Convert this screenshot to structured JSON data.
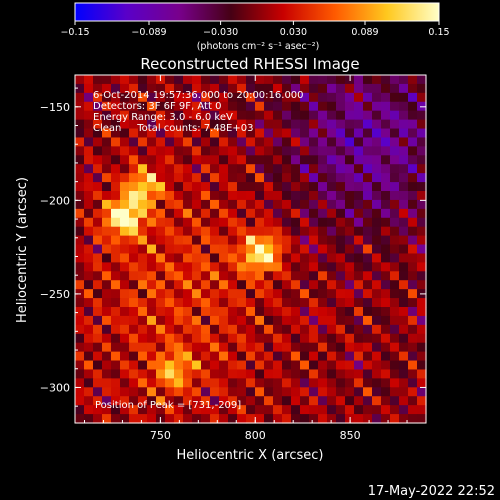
{
  "chart_data": {
    "type": "heatmap",
    "title": "Reconstructed RHESSI Image",
    "xlabel": "Heliocentric X (arcsec)",
    "ylabel": "Heliocentric Y (arcsec)",
    "xlim": [
      705,
      890
    ],
    "ylim": [
      -319,
      -133
    ],
    "x_ticks": [
      750,
      800,
      850
    ],
    "y_ticks": [
      -150,
      -200,
      -250,
      -300
    ],
    "x_tick_labels": [
      "750",
      "800",
      "850"
    ],
    "y_tick_labels": [
      "−150",
      "−200",
      "−250",
      "−300"
    ],
    "colorbar": {
      "range": [
        -0.15,
        0.15
      ],
      "ticks": [
        -0.15,
        -0.089,
        -0.03,
        0.03,
        0.089,
        0.15
      ],
      "tick_labels": [
        "−0.15",
        "−0.089",
        "−0.030",
        "0.030",
        "0.089",
        "0.15"
      ],
      "units_label": "(photons cm⁻² s⁻¹ asec⁻²)",
      "colors": [
        "#0000ff",
        "#5a00c8",
        "#78008c",
        "#460014",
        "#c80000",
        "#ff5a00",
        "#ffc81e",
        "#ffffc8"
      ]
    },
    "annotations": [
      "6-Oct-2014 19:57:36.000 to 20:00:16.000",
      "Detectors: 3F 6F 9F, Att 0",
      "Energy Range: 3.0 - 6.0 keV",
      "Clean     Total counts: 7.48E+03"
    ],
    "peak_label": "Position of Peak = [731,-209]",
    "peak": {
      "x": 731,
      "y": -209
    },
    "sources": [
      {
        "x": 731,
        "y": -209,
        "amplitude": 0.15
      },
      {
        "x": 803,
        "y": -228,
        "amplitude": 0.14
      },
      {
        "x": 741,
        "y": -193,
        "amplitude": 0.1
      },
      {
        "x": 757,
        "y": -291,
        "amplitude": 0.08
      }
    ],
    "grid": false
  },
  "footer": {
    "date": "17-May-2022 22:52"
  }
}
